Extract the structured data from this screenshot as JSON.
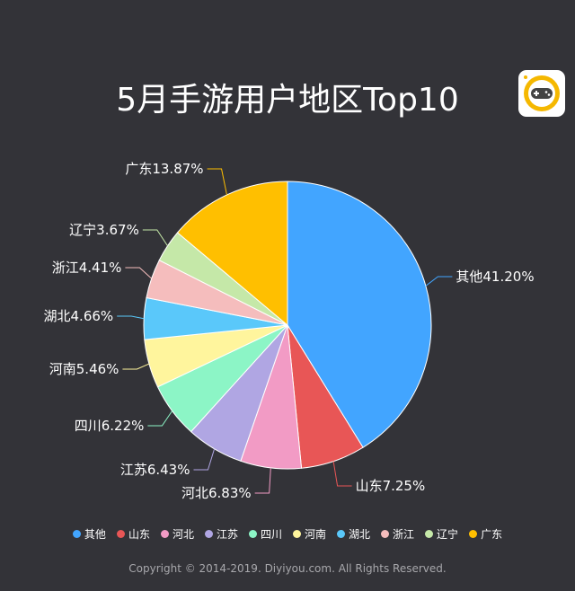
{
  "chart_data": {
    "type": "pie",
    "title": "5月手游用户地区Top10",
    "slices": [
      {
        "name": "其他",
        "value": 41.2,
        "label": "其他41.20%",
        "color": "#42a5ff"
      },
      {
        "name": "山东",
        "value": 7.25,
        "label": "山东7.25%",
        "color": "#e85656"
      },
      {
        "name": "河北",
        "value": 6.83,
        "label": "河北6.83%",
        "color": "#f29bc5"
      },
      {
        "name": "江苏",
        "value": 6.43,
        "label": "江苏6.43%",
        "color": "#b0a6e3"
      },
      {
        "name": "四川",
        "value": 6.22,
        "label": "四川6.22%",
        "color": "#8cf5c6"
      },
      {
        "name": "河南",
        "value": 5.46,
        "label": "河南5.46%",
        "color": "#fff59d"
      },
      {
        "name": "湖北",
        "value": 4.66,
        "label": "湖北4.66%",
        "color": "#5ac8fa"
      },
      {
        "name": "浙江",
        "value": 4.41,
        "label": "浙江4.41%",
        "color": "#f5bdbd"
      },
      {
        "name": "辽宁",
        "value": 3.67,
        "label": "辽宁3.67%",
        "color": "#c5e8a8"
      },
      {
        "name": "广东",
        "value": 13.87,
        "label": "广东13.87%",
        "color": "#ffbf00"
      }
    ],
    "legend_position": "bottom"
  },
  "footer": {
    "copyright": "Copyright © 2014-2019. Diyiyou.com. All Rights Reserved."
  },
  "logo": {
    "icon": "gamepad-icon",
    "color": "#f5b800"
  }
}
